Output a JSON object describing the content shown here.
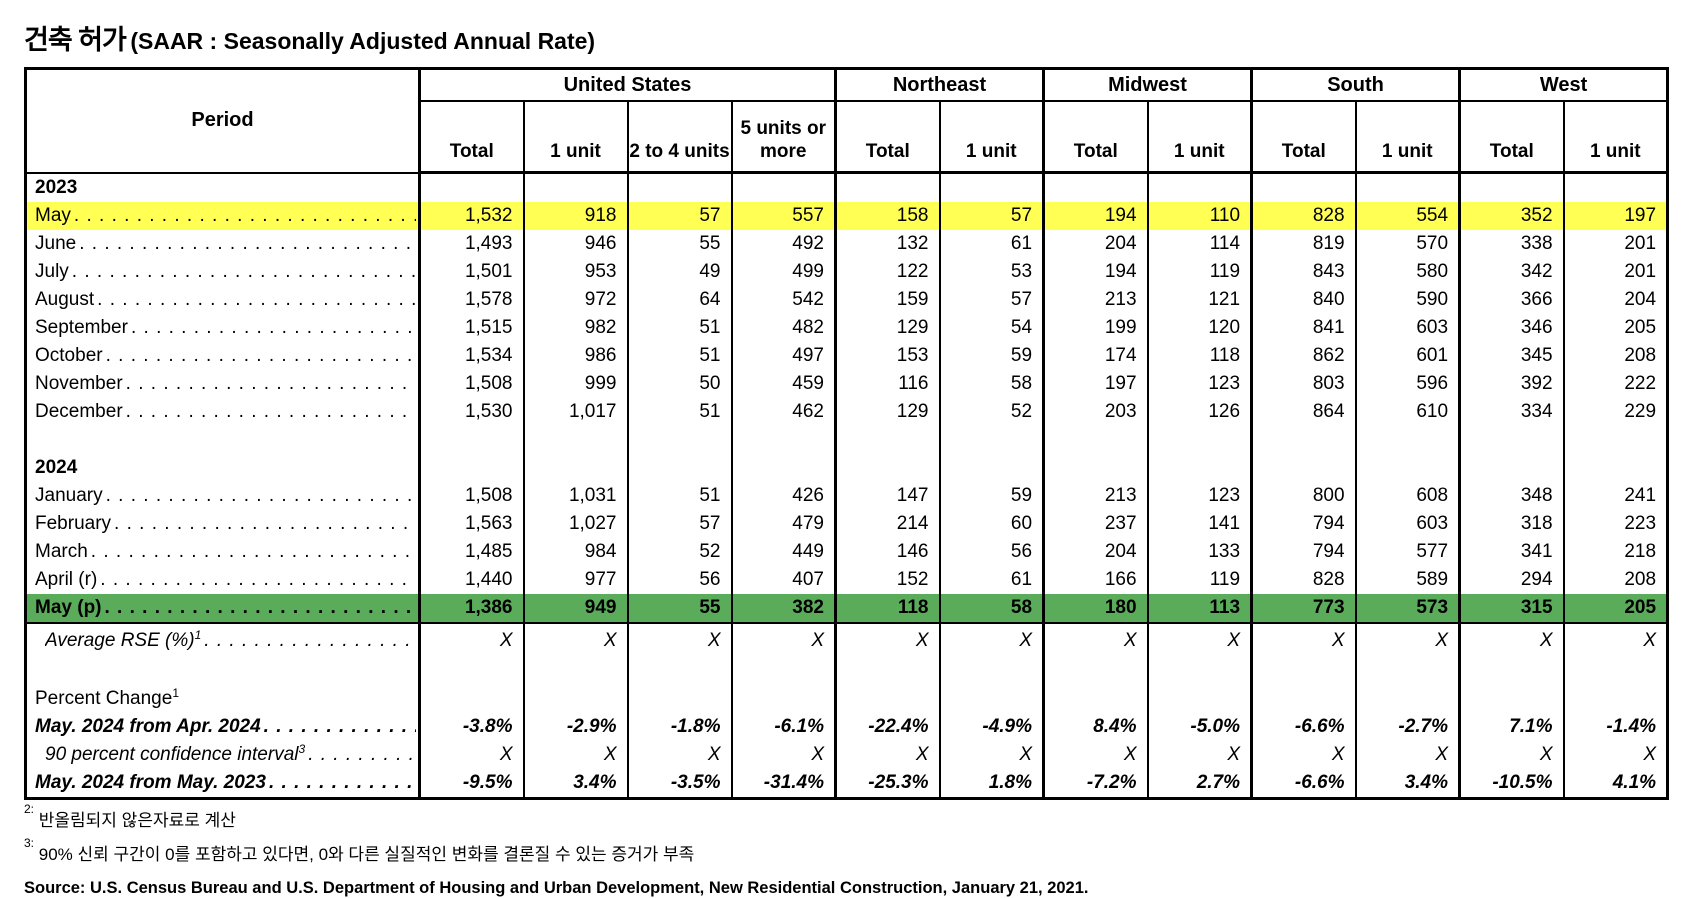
{
  "title": {
    "korean": "건축 허가",
    "latin": "(SAAR : Seasonally Adjusted Annual Rate)"
  },
  "colors": {
    "highlight_yellow": "#FFFF54",
    "highlight_green": "#5AAB5A",
    "border": "#000000"
  },
  "table": {
    "period_header": "Period",
    "groups": [
      {
        "label": "United States"
      },
      {
        "label": "Northeast"
      },
      {
        "label": "Midwest"
      },
      {
        "label": "South"
      },
      {
        "label": "West"
      }
    ],
    "columns": [
      "Total",
      "1 unit",
      "2 to 4 units",
      "5 units or more",
      "Total",
      "1 unit",
      "Total",
      "1 unit",
      "Total",
      "1 unit",
      "Total",
      "1 unit"
    ],
    "rows": [
      {
        "type": "section",
        "label": "2023",
        "dots": false,
        "values": [
          "",
          "",
          "",
          "",
          "",
          "",
          "",
          "",
          "",
          "",
          "",
          ""
        ]
      },
      {
        "type": "data",
        "label": "May",
        "dots": true,
        "highlight": "yellow",
        "values": [
          "1,532",
          "918",
          "57",
          "557",
          "158",
          "57",
          "194",
          "110",
          "828",
          "554",
          "352",
          "197"
        ]
      },
      {
        "type": "data",
        "label": "June",
        "dots": true,
        "values": [
          "1,493",
          "946",
          "55",
          "492",
          "132",
          "61",
          "204",
          "114",
          "819",
          "570",
          "338",
          "201"
        ]
      },
      {
        "type": "data",
        "label": "July",
        "dots": true,
        "values": [
          "1,501",
          "953",
          "49",
          "499",
          "122",
          "53",
          "194",
          "119",
          "843",
          "580",
          "342",
          "201"
        ]
      },
      {
        "type": "data",
        "label": "August",
        "dots": true,
        "values": [
          "1,578",
          "972",
          "64",
          "542",
          "159",
          "57",
          "213",
          "121",
          "840",
          "590",
          "366",
          "204"
        ]
      },
      {
        "type": "data",
        "label": "September",
        "dots": true,
        "values": [
          "1,515",
          "982",
          "51",
          "482",
          "129",
          "54",
          "199",
          "120",
          "841",
          "603",
          "346",
          "205"
        ]
      },
      {
        "type": "data",
        "label": "October",
        "dots": true,
        "values": [
          "1,534",
          "986",
          "51",
          "497",
          "153",
          "59",
          "174",
          "118",
          "862",
          "601",
          "345",
          "208"
        ]
      },
      {
        "type": "data",
        "label": "November",
        "dots": true,
        "values": [
          "1,508",
          "999",
          "50",
          "459",
          "116",
          "58",
          "197",
          "123",
          "803",
          "596",
          "392",
          "222"
        ]
      },
      {
        "type": "data",
        "label": "December",
        "dots": true,
        "values": [
          "1,530",
          "1,017",
          "51",
          "462",
          "129",
          "52",
          "203",
          "126",
          "864",
          "610",
          "334",
          "229"
        ]
      },
      {
        "type": "blank",
        "label": "",
        "dots": false,
        "values": [
          "",
          "",
          "",
          "",
          "",
          "",
          "",
          "",
          "",
          "",
          "",
          ""
        ]
      },
      {
        "type": "section",
        "label": "2024",
        "dots": false,
        "values": [
          "",
          "",
          "",
          "",
          "",
          "",
          "",
          "",
          "",
          "",
          "",
          ""
        ]
      },
      {
        "type": "data",
        "label": "January",
        "dots": true,
        "values": [
          "1,508",
          "1,031",
          "51",
          "426",
          "147",
          "59",
          "213",
          "123",
          "800",
          "608",
          "348",
          "241"
        ]
      },
      {
        "type": "data",
        "label": "February",
        "dots": true,
        "values": [
          "1,563",
          "1,027",
          "57",
          "479",
          "214",
          "60",
          "237",
          "141",
          "794",
          "603",
          "318",
          "223"
        ]
      },
      {
        "type": "data",
        "label": "March",
        "dots": true,
        "values": [
          "1,485",
          "984",
          "52",
          "449",
          "146",
          "56",
          "204",
          "133",
          "794",
          "577",
          "341",
          "218"
        ]
      },
      {
        "type": "data",
        "label": "April (r)",
        "dots": true,
        "values": [
          "1,440",
          "977",
          "56",
          "407",
          "152",
          "61",
          "166",
          "119",
          "828",
          "589",
          "294",
          "208"
        ]
      },
      {
        "type": "data",
        "label": "May (p)",
        "dots": true,
        "highlight": "green",
        "values": [
          "1,386",
          "949",
          "55",
          "382",
          "118",
          "58",
          "180",
          "113",
          "773",
          "573",
          "315",
          "205"
        ]
      },
      {
        "type": "data",
        "label": "Average RSE (%)",
        "sup": "1",
        "dots": true,
        "style": "italic",
        "indent": true,
        "tall": true,
        "values": [
          "X",
          "X",
          "X",
          "X",
          "X",
          "X",
          "X",
          "X",
          "X",
          "X",
          "X",
          "X"
        ]
      },
      {
        "type": "blank",
        "label": "",
        "dots": false,
        "values": [
          "",
          "",
          "",
          "",
          "",
          "",
          "",
          "",
          "",
          "",
          "",
          ""
        ]
      },
      {
        "type": "data",
        "label": "Percent Change",
        "sup": "1",
        "dots": false,
        "values": [
          "",
          "",
          "",
          "",
          "",
          "",
          "",
          "",
          "",
          "",
          "",
          ""
        ]
      },
      {
        "type": "data",
        "label": "May. 2024 from Apr. 2024",
        "dots": true,
        "style": "bolditalic",
        "values": [
          "-3.8%",
          "-2.9%",
          "-1.8%",
          "-6.1%",
          "-22.4%",
          "-4.9%",
          "8.4%",
          "-5.0%",
          "-6.6%",
          "-2.7%",
          "7.1%",
          "-1.4%"
        ]
      },
      {
        "type": "data",
        "label": "90 percent confidence interval",
        "sup": "3",
        "dots": true,
        "style": "italic",
        "indent": true,
        "values": [
          "X",
          "X",
          "X",
          "X",
          "X",
          "X",
          "X",
          "X",
          "X",
          "X",
          "X",
          "X"
        ]
      },
      {
        "type": "data",
        "label": "May. 2024 from May. 2023",
        "dots": true,
        "style": "bolditalic",
        "values": [
          "-9.5%",
          "3.4%",
          "-3.5%",
          "-31.4%",
          "-25.3%",
          "1.8%",
          "-7.2%",
          "2.7%",
          "-6.6%",
          "3.4%",
          "-10.5%",
          "4.1%"
        ]
      }
    ]
  },
  "footnotes": [
    {
      "sup": "2:",
      "text": "반올림되지 않은자료로 계산"
    },
    {
      "sup": "3:",
      "text": "90% 신뢰 구간이 0를 포함하고 있다면, 0와 다른 실질적인 변화를 결론질 수 있는 증거가 부족"
    }
  ],
  "source": "Source: U.S. Census Bureau and U.S. Department of Housing and Urban Development, New Residential Construction, January 21, 2021."
}
